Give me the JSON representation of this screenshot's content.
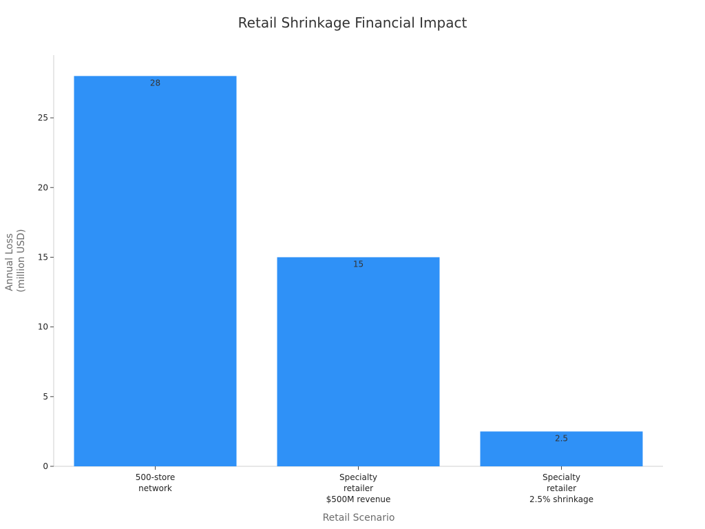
{
  "chart_data": {
    "type": "bar",
    "title": "Retail Shrinkage Financial Impact",
    "xlabel": "Retail Scenario",
    "ylabel": [
      "Annual Loss",
      "(million USD)"
    ],
    "categories": [
      [
        "500-store",
        "network"
      ],
      [
        "Specialty",
        "retailer",
        "$500M revenue"
      ],
      [
        "Specialty",
        "retailer",
        "2.5% shrinkage"
      ]
    ],
    "values": [
      28,
      15,
      2.5
    ],
    "data_labels": [
      "28",
      "15",
      "2.5"
    ],
    "ylim": [
      0,
      29.5
    ],
    "yticks": [
      0,
      5,
      10,
      15,
      20,
      25
    ],
    "ytick_labels": [
      "0",
      "5",
      "10",
      "15",
      "20",
      "25"
    ],
    "bar_color": "#2f91f7",
    "grid": false,
    "legend": "none"
  }
}
